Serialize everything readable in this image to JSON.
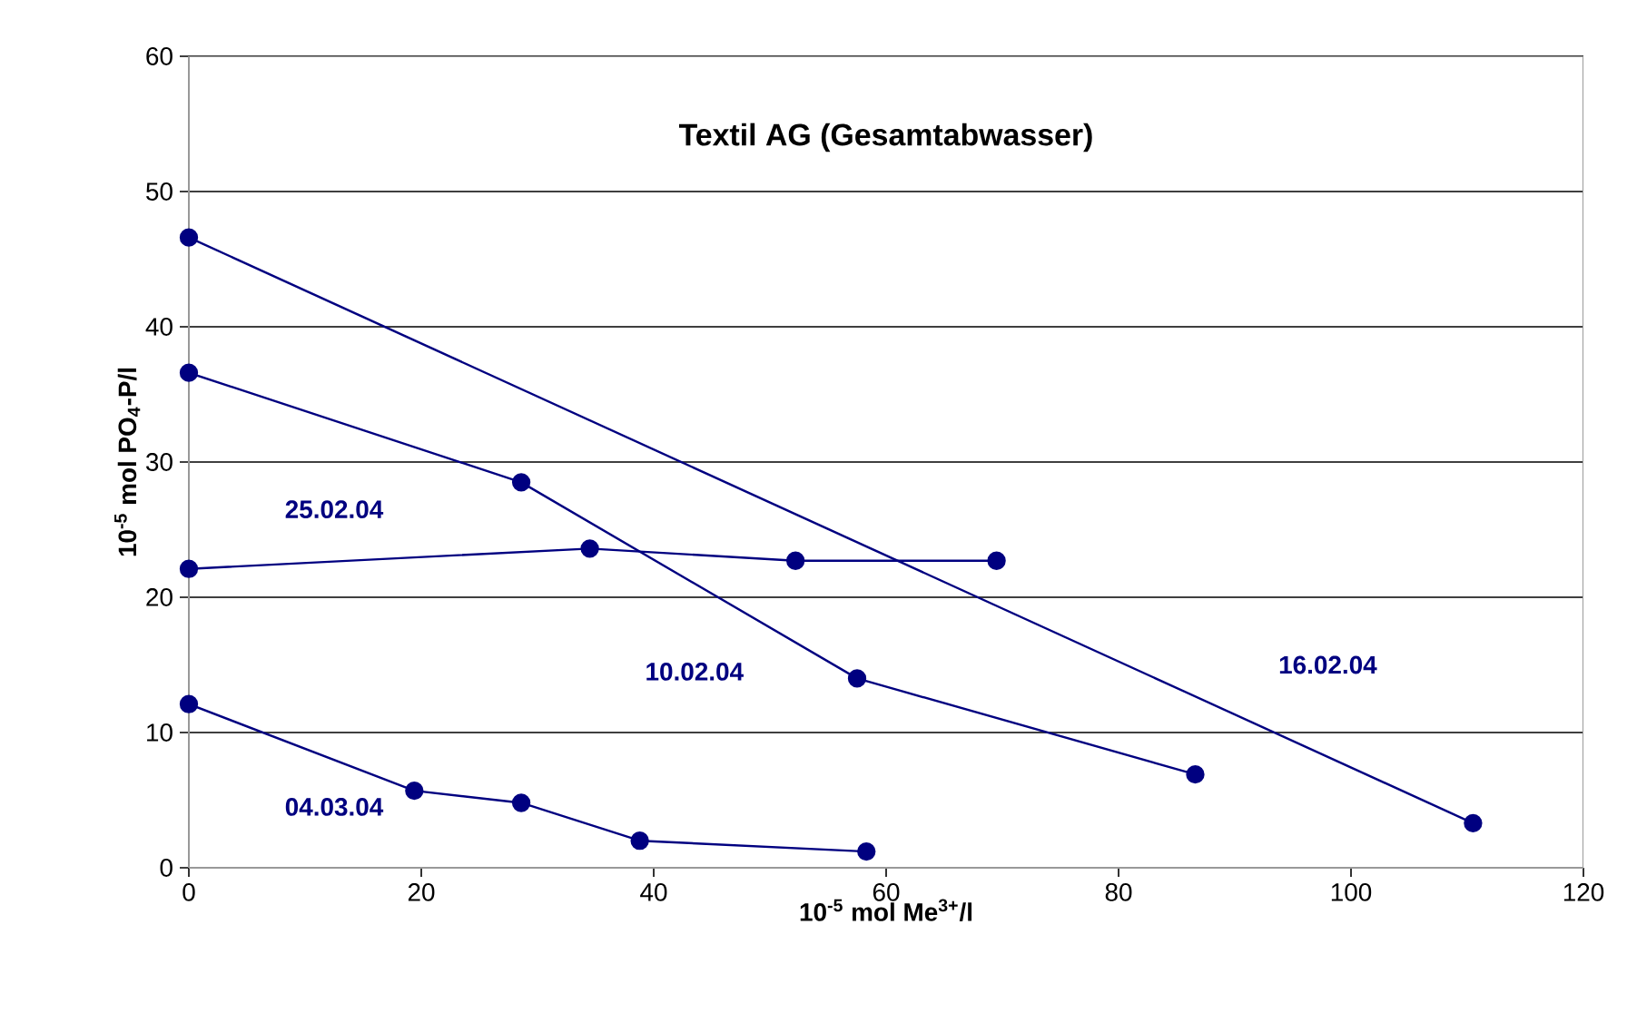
{
  "chart_data": {
    "type": "line",
    "title": "Textil AG (Gesamtabwasser)",
    "xlabel": "10$^{-5}$ mol Me$^{3+}$/l",
    "ylabel": "10$^{-5}$ mol PO$_{4}$-P/l",
    "xlim": [
      0,
      120
    ],
    "xticks": [
      0,
      20,
      40,
      60,
      80,
      100,
      120
    ],
    "ylim": [
      0,
      60
    ],
    "yticks": [
      0,
      10,
      20,
      30,
      40,
      50,
      60
    ],
    "grid": "y",
    "legend": false,
    "marker": "circle",
    "line_style": "solid",
    "series": [
      {
        "name": "10.02.04",
        "color": "#000080",
        "x": [
          0,
          28.6,
          57.5,
          86.6
        ],
        "values": [
          36.6,
          28.5,
          14.0,
          6.9
        ]
      },
      {
        "name": "16.02.04",
        "color": "#000080",
        "x": [
          0,
          110.5
        ],
        "values": [
          46.6,
          3.3
        ]
      },
      {
        "name": "25.02.04",
        "color": "#000080",
        "x": [
          0,
          34.5,
          52.2,
          69.5
        ],
        "values": [
          22.1,
          23.6,
          22.7,
          22.7
        ]
      },
      {
        "name": "04.03.04",
        "color": "#000080",
        "x": [
          0,
          19.4,
          28.6,
          38.8,
          58.3
        ],
        "values": [
          12.1,
          5.7,
          4.8,
          2.0,
          1.2
        ]
      }
    ]
  }
}
